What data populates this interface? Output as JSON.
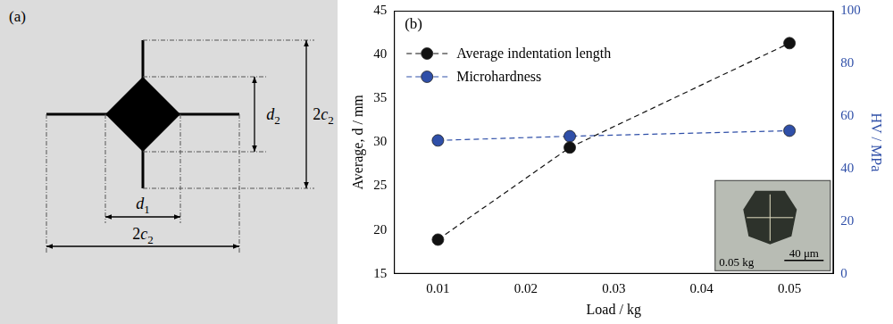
{
  "diagram": {
    "panel_label": "(a)",
    "labels": [
      {
        "text": "d",
        "sub": "1"
      },
      {
        "text": "d",
        "sub": "2"
      },
      {
        "text": "2c",
        "sub": "2"
      },
      {
        "text": "2c",
        "sub": "2"
      }
    ]
  },
  "chart_data": {
    "type": "line",
    "panel_label": "(b)",
    "x_label": "Load / kg",
    "y_label": "Average, d / mm",
    "y2_label": "HV / MPa",
    "x": [
      0.01,
      0.025,
      0.05
    ],
    "series": [
      {
        "name": "Average indentation length",
        "color": "#111111",
        "marker": "circle",
        "line_style": "dashed",
        "values": [
          18.9,
          29.4,
          41.3
        ]
      },
      {
        "name": "Microhardness",
        "color": "#2f4fa8",
        "marker": "circle",
        "line_style": "dashed",
        "axis": "y2",
        "values": [
          50.7,
          52.3,
          54.4
        ]
      }
    ],
    "xlim": [
      0.005,
      0.055
    ],
    "xticks": [
      0.01,
      0.02,
      0.03,
      0.04,
      0.05
    ],
    "ylim": [
      15,
      45
    ],
    "yticks": [
      15,
      20,
      25,
      30,
      35,
      40,
      45
    ],
    "y2lim": [
      0,
      100
    ],
    "y2ticks": [
      0,
      20,
      40,
      60,
      80,
      100
    ],
    "grid": false,
    "legend": "upper left",
    "annotations": [
      "0.05 kg",
      "40 μm"
    ]
  }
}
